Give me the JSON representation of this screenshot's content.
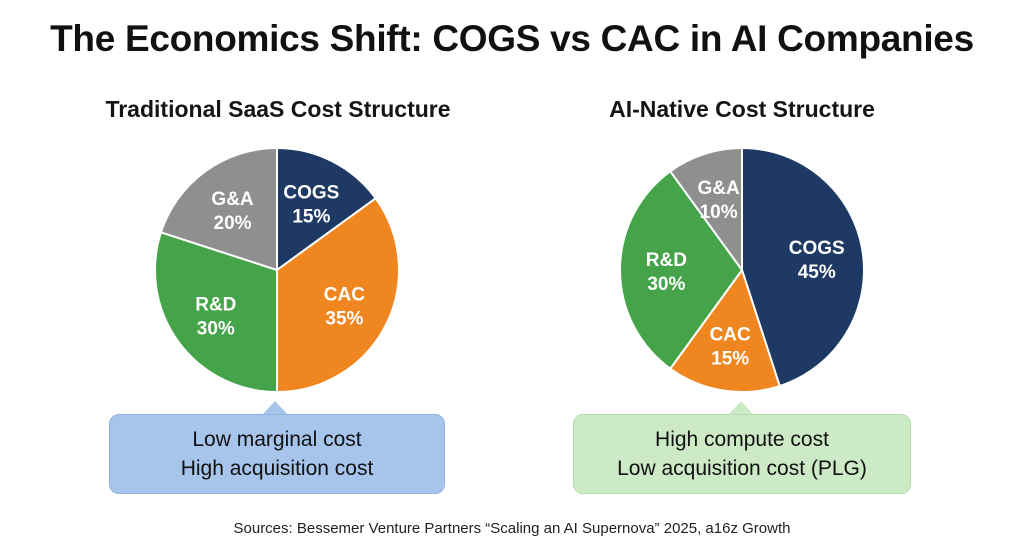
{
  "title": "The Economics Shift: COGS vs CAC in AI Companies",
  "chart_data": [
    {
      "type": "pie",
      "title": "Traditional SaaS Cost Structure",
      "slices": [
        {
          "label": "COGS",
          "value": 15,
          "display": "15%",
          "color": "#1e3a64"
        },
        {
          "label": "CAC",
          "value": 35,
          "display": "35%",
          "color": "#ef8620"
        },
        {
          "label": "R&D",
          "value": 30,
          "display": "30%",
          "color": "#45a34a"
        },
        {
          "label": "G&A",
          "value": 20,
          "display": "20%",
          "color": "#8f8f8f"
        }
      ],
      "callout": [
        "Low marginal cost",
        "High acquisition cost"
      ]
    },
    {
      "type": "pie",
      "title": "AI-Native Cost Structure",
      "slices": [
        {
          "label": "COGS",
          "value": 45,
          "display": "45%",
          "color": "#1e3a64"
        },
        {
          "label": "CAC",
          "value": 15,
          "display": "15%",
          "color": "#ef8620"
        },
        {
          "label": "R&D",
          "value": 30,
          "display": "30%",
          "color": "#45a34a"
        },
        {
          "label": "G&A",
          "value": 10,
          "display": "10%",
          "color": "#8f8f8f"
        }
      ],
      "callout": [
        "High compute cost",
        "Low acquisition cost (PLG)"
      ]
    }
  ],
  "source": "Sources: Bessemer Venture Partners “Scaling an AI Supernova” 2025, a16z Growth"
}
